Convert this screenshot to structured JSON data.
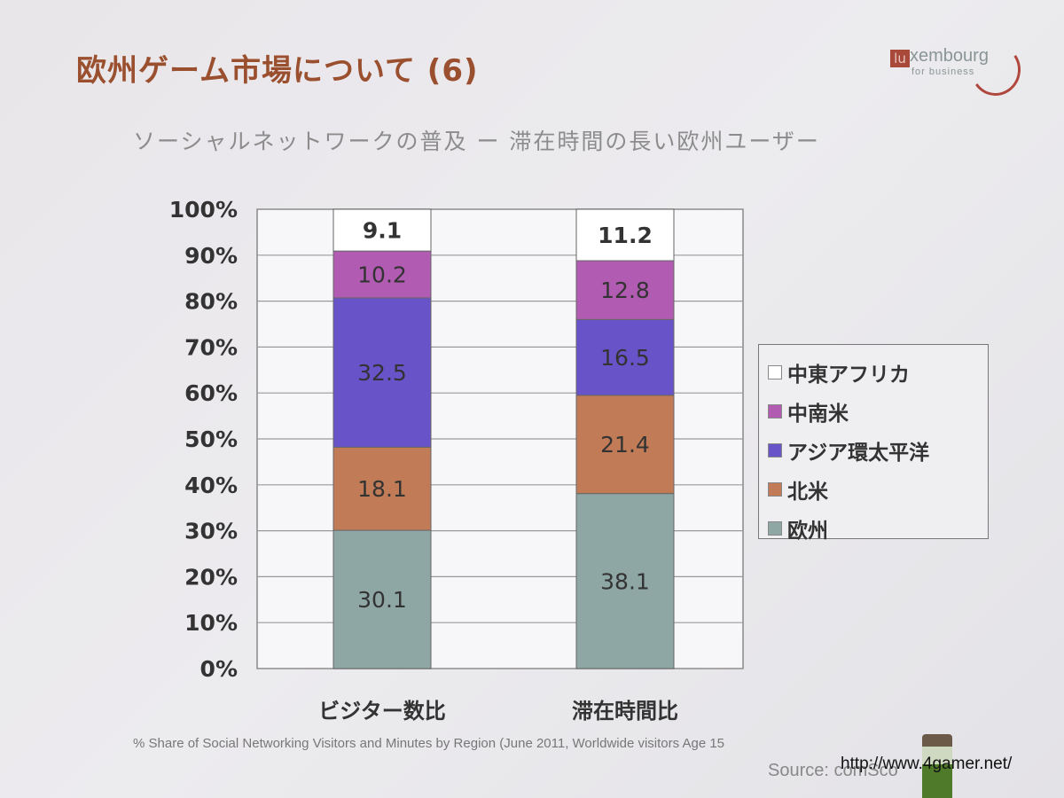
{
  "slide": {
    "title": "欧州ゲーム市場について (6)",
    "subtitle": "ソーシャルネットワークの普及 ー 滞在時間の長い欧州ユーザー",
    "logo_text": "luxembourg for business",
    "caption": "% Share of Social Networking  Visitors and Minutes  by Region  (June 2011, Worldwide visitors Age 15",
    "source": "Source: comSco",
    "watermark": "http://www.4gamer.net/"
  },
  "chart_data": {
    "type": "bar",
    "stacked": true,
    "categories": [
      "ビジター数比",
      "滞在時間比"
    ],
    "series": [
      {
        "name": "欧州",
        "values": [
          30.1,
          38.1
        ],
        "color": "#8ea7a5"
      },
      {
        "name": "北米",
        "values": [
          18.1,
          21.4
        ],
        "color": "#c17c57"
      },
      {
        "name": "アジア環太平洋",
        "values": [
          32.5,
          16.5
        ],
        "color": "#6853c9"
      },
      {
        "name": "中南米",
        "values": [
          10.2,
          12.8
        ],
        "color": "#b15cb2"
      },
      {
        "name": "中東アフリカ",
        "values": [
          9.1,
          11.2
        ],
        "color": "#ffffff"
      }
    ],
    "legend_order": [
      "中東アフリカ",
      "中南米",
      "アジア環太平洋",
      "北米",
      "欧州"
    ],
    "yticks": [
      "0%",
      "10%",
      "20%",
      "30%",
      "40%",
      "50%",
      "60%",
      "70%",
      "80%",
      "90%",
      "100%"
    ],
    "ylim": [
      0,
      100
    ],
    "grid": true,
    "legend_position": "right"
  }
}
